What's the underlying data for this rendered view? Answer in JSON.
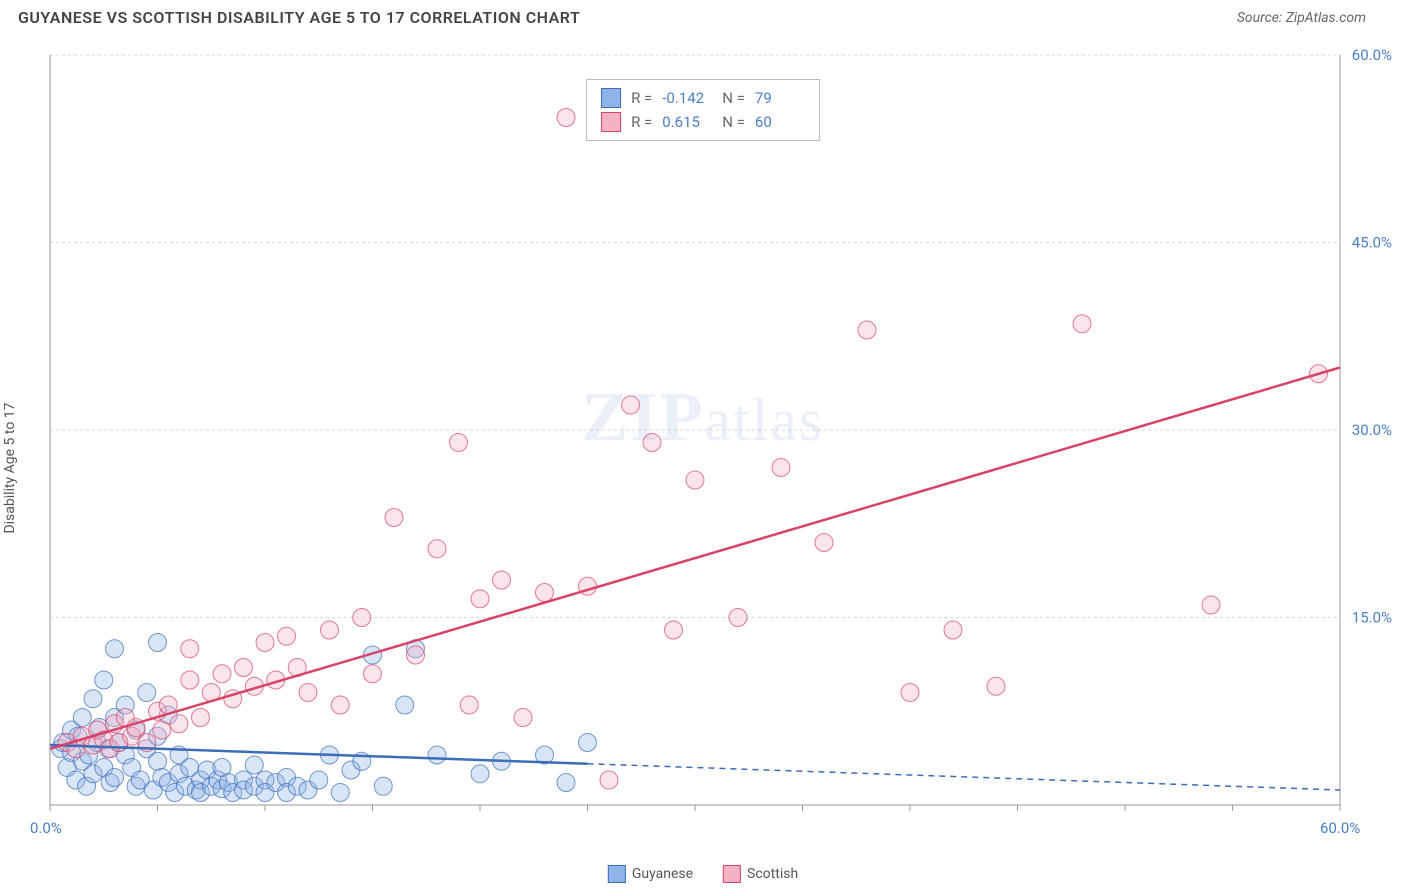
{
  "header": {
    "title": "GUYANESE VS SCOTTISH DISABILITY AGE 5 TO 17 CORRELATION CHART",
    "source_prefix": "Source: ",
    "source_name": "ZipAtlas.com"
  },
  "chart": {
    "type": "scatter",
    "ylabel": "Disability Age 5 to 17",
    "xlim": [
      0,
      60
    ],
    "ylim": [
      0,
      60
    ],
    "xtick_labels": [
      "0.0%",
      "60.0%"
    ],
    "ytick_labels": [
      "15.0%",
      "30.0%",
      "45.0%",
      "60.0%"
    ],
    "ytick_values": [
      15,
      30,
      45,
      60
    ],
    "xtick_minor": [
      0,
      5,
      10,
      15,
      20,
      25,
      30,
      35,
      40,
      45,
      50,
      55,
      60
    ],
    "grid_color": "#d8d8d8",
    "axis_color": "#999999",
    "background_color": "#ffffff",
    "label_color": "#4a7fc9",
    "marker_radius": 9,
    "marker_opacity": 0.35,
    "line_width": 2.5,
    "watermark": "ZIPatlas",
    "series": [
      {
        "name": "Guyanese",
        "fill_color": "#8fb4e8",
        "stroke_color": "#3d6db8",
        "R": "-0.142",
        "N": "79",
        "trend": {
          "x1": 0,
          "y1": 4.8,
          "x2": 60,
          "y2": 1.2,
          "solid_until_x": 25
        },
        "points": [
          [
            0.5,
            4.5
          ],
          [
            0.6,
            5.0
          ],
          [
            0.8,
            3.0
          ],
          [
            1.0,
            4.2
          ],
          [
            1.0,
            6.0
          ],
          [
            1.2,
            2.0
          ],
          [
            1.3,
            5.5
          ],
          [
            1.5,
            7.0
          ],
          [
            1.5,
            3.5
          ],
          [
            1.7,
            1.5
          ],
          [
            1.8,
            4.0
          ],
          [
            2.0,
            8.5
          ],
          [
            2.0,
            2.5
          ],
          [
            2.2,
            5.0
          ],
          [
            2.3,
            6.2
          ],
          [
            2.5,
            3.0
          ],
          [
            2.5,
            10.0
          ],
          [
            2.7,
            4.5
          ],
          [
            2.8,
            1.8
          ],
          [
            3.0,
            7.0
          ],
          [
            3.0,
            12.5
          ],
          [
            3.0,
            2.2
          ],
          [
            3.2,
            5.0
          ],
          [
            3.5,
            4.0
          ],
          [
            3.5,
            8.0
          ],
          [
            3.8,
            3.0
          ],
          [
            4.0,
            1.5
          ],
          [
            4.0,
            6.0
          ],
          [
            4.2,
            2.0
          ],
          [
            4.5,
            4.5
          ],
          [
            4.5,
            9.0
          ],
          [
            4.8,
            1.2
          ],
          [
            5.0,
            3.5
          ],
          [
            5.0,
            5.5
          ],
          [
            5.0,
            13.0
          ],
          [
            5.2,
            2.2
          ],
          [
            5.5,
            1.8
          ],
          [
            5.5,
            7.2
          ],
          [
            5.8,
            1.0
          ],
          [
            6.0,
            4.0
          ],
          [
            6.0,
            2.5
          ],
          [
            6.3,
            1.5
          ],
          [
            6.5,
            3.0
          ],
          [
            6.8,
            1.2
          ],
          [
            7.0,
            2.0
          ],
          [
            7.0,
            1.0
          ],
          [
            7.3,
            2.8
          ],
          [
            7.5,
            1.5
          ],
          [
            7.8,
            2.0
          ],
          [
            8.0,
            1.3
          ],
          [
            8.0,
            3.0
          ],
          [
            8.3,
            1.8
          ],
          [
            8.5,
            1.0
          ],
          [
            9.0,
            2.0
          ],
          [
            9.0,
            1.2
          ],
          [
            9.5,
            3.2
          ],
          [
            9.5,
            1.5
          ],
          [
            10.0,
            2.0
          ],
          [
            10.0,
            1.0
          ],
          [
            10.5,
            1.8
          ],
          [
            11.0,
            2.2
          ],
          [
            11.0,
            1.0
          ],
          [
            11.5,
            1.5
          ],
          [
            12.0,
            1.2
          ],
          [
            12.5,
            2.0
          ],
          [
            13.0,
            4.0
          ],
          [
            13.5,
            1.0
          ],
          [
            14.0,
            2.8
          ],
          [
            14.5,
            3.5
          ],
          [
            15.0,
            12.0
          ],
          [
            15.5,
            1.5
          ],
          [
            16.5,
            8.0
          ],
          [
            17.0,
            12.5
          ],
          [
            18.0,
            4.0
          ],
          [
            20.0,
            2.5
          ],
          [
            21.0,
            3.5
          ],
          [
            23.0,
            4.0
          ],
          [
            24.0,
            1.8
          ],
          [
            25.0,
            5.0
          ]
        ]
      },
      {
        "name": "Scottish",
        "fill_color": "#f4b3c2",
        "stroke_color": "#d8436a",
        "R": "0.615",
        "N": "60",
        "trend": {
          "x1": 0,
          "y1": 4.5,
          "x2": 60,
          "y2": 35.0,
          "solid_until_x": 60
        },
        "points": [
          [
            0.8,
            5.0
          ],
          [
            1.2,
            4.5
          ],
          [
            1.5,
            5.5
          ],
          [
            2.0,
            4.8
          ],
          [
            2.2,
            6.0
          ],
          [
            2.5,
            5.2
          ],
          [
            2.8,
            4.5
          ],
          [
            3.0,
            6.5
          ],
          [
            3.2,
            5.0
          ],
          [
            3.5,
            7.0
          ],
          [
            3.8,
            5.5
          ],
          [
            4.0,
            6.2
          ],
          [
            4.5,
            5.0
          ],
          [
            5.0,
            7.5
          ],
          [
            5.2,
            6.0
          ],
          [
            5.5,
            8.0
          ],
          [
            6.0,
            6.5
          ],
          [
            6.5,
            10.0
          ],
          [
            6.5,
            12.5
          ],
          [
            7.0,
            7.0
          ],
          [
            7.5,
            9.0
          ],
          [
            8.0,
            10.5
          ],
          [
            8.5,
            8.5
          ],
          [
            9.0,
            11.0
          ],
          [
            9.5,
            9.5
          ],
          [
            10.0,
            13.0
          ],
          [
            10.5,
            10.0
          ],
          [
            11.0,
            13.5
          ],
          [
            11.5,
            11.0
          ],
          [
            12.0,
            9.0
          ],
          [
            13.0,
            14.0
          ],
          [
            13.5,
            8.0
          ],
          [
            14.5,
            15.0
          ],
          [
            15.0,
            10.5
          ],
          [
            16.0,
            23.0
          ],
          [
            17.0,
            12.0
          ],
          [
            18.0,
            20.5
          ],
          [
            19.0,
            29.0
          ],
          [
            19.5,
            8.0
          ],
          [
            20.0,
            16.5
          ],
          [
            21.0,
            18.0
          ],
          [
            22.0,
            7.0
          ],
          [
            23.0,
            17.0
          ],
          [
            24.0,
            55.0
          ],
          [
            25.0,
            17.5
          ],
          [
            26.0,
            2.0
          ],
          [
            27.0,
            32.0
          ],
          [
            28.0,
            29.0
          ],
          [
            29.0,
            14.0
          ],
          [
            30.0,
            26.0
          ],
          [
            32.0,
            15.0
          ],
          [
            34.0,
            27.0
          ],
          [
            36.0,
            21.0
          ],
          [
            38.0,
            38.0
          ],
          [
            40.0,
            9.0
          ],
          [
            42.0,
            14.0
          ],
          [
            44.0,
            9.5
          ],
          [
            48.0,
            38.5
          ],
          [
            54.0,
            16.0
          ],
          [
            59.0,
            34.5
          ]
        ]
      }
    ],
    "legend_bottom": [
      "Guyanese",
      "Scottish"
    ]
  }
}
